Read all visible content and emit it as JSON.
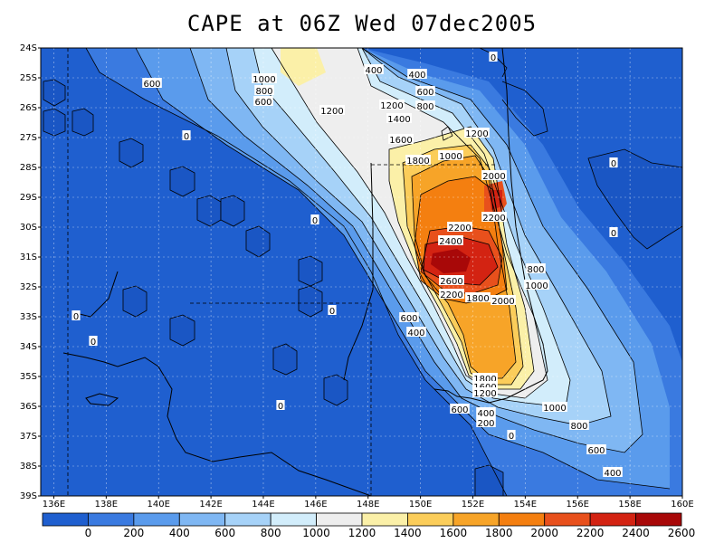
{
  "title": "CAPE at 06Z Wed 07dec2005",
  "lat_ticks": [
    "24S",
    "25S",
    "26S",
    "27S",
    "28S",
    "29S",
    "30S",
    "31S",
    "32S",
    "33S",
    "34S",
    "35S",
    "36S",
    "37S",
    "38S",
    "39S"
  ],
  "lon_ticks": [
    "136E",
    "138E",
    "140E",
    "142E",
    "144E",
    "146E",
    "148E",
    "150E",
    "152E",
    "154E",
    "156E",
    "158E",
    "160E"
  ],
  "colorbar": {
    "colors": [
      "#1f5fcf",
      "#3a7ae0",
      "#5a9bec",
      "#7fb7f3",
      "#a6d2f8",
      "#d2edfb",
      "#eeeeee",
      "#fbf0a8",
      "#fbcd5a",
      "#f7a428",
      "#f47f10",
      "#e8501c",
      "#d32312",
      "#a80808"
    ],
    "labels": [
      "0",
      "200",
      "400",
      "600",
      "800",
      "1000",
      "1200",
      "1400",
      "1600",
      "1800",
      "2000",
      "2200",
      "2400",
      "2600"
    ]
  },
  "contour_labels": [
    {
      "text": "0"
    },
    {
      "text": "400"
    },
    {
      "text": "600"
    },
    {
      "text": "1000"
    },
    {
      "text": "800"
    },
    {
      "text": "600"
    },
    {
      "text": "1200"
    },
    {
      "text": "400"
    },
    {
      "text": "600"
    },
    {
      "text": "800"
    },
    {
      "text": "1200"
    },
    {
      "text": "1400"
    },
    {
      "text": "1600"
    },
    {
      "text": "1200"
    },
    {
      "text": "1800"
    },
    {
      "text": "1000"
    },
    {
      "text": "2000"
    },
    {
      "text": "2200"
    },
    {
      "text": "2200"
    },
    {
      "text": "2400"
    },
    {
      "text": "0"
    },
    {
      "text": "0"
    },
    {
      "text": "0"
    },
    {
      "text": "0"
    },
    {
      "text": "800"
    },
    {
      "text": "1000"
    },
    {
      "text": "2600"
    },
    {
      "text": "2200"
    },
    {
      "text": "1800"
    },
    {
      "text": "2000"
    },
    {
      "text": "0"
    },
    {
      "text": "0"
    },
    {
      "text": "600"
    },
    {
      "text": "400"
    },
    {
      "text": "0"
    },
    {
      "text": "1800"
    },
    {
      "text": "1600"
    },
    {
      "text": "1200"
    },
    {
      "text": "600"
    },
    {
      "text": "400"
    },
    {
      "text": "200"
    },
    {
      "text": "1000"
    },
    {
      "text": "800"
    },
    {
      "text": "0"
    },
    {
      "text": "600"
    },
    {
      "text": "400"
    },
    {
      "text": "0"
    }
  ]
}
